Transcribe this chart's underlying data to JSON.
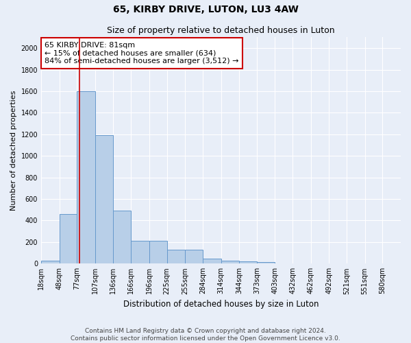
{
  "title1": "65, KIRBY DRIVE, LUTON, LU3 4AW",
  "title2": "Size of property relative to detached houses in Luton",
  "xlabel": "Distribution of detached houses by size in Luton",
  "ylabel": "Number of detached properties",
  "bin_edges": [
    18,
    48,
    77,
    107,
    136,
    166,
    196,
    225,
    255,
    284,
    314,
    344,
    373,
    403,
    432,
    462,
    492,
    521,
    551,
    580,
    610
  ],
  "bar_heights": [
    30,
    460,
    1600,
    1190,
    490,
    210,
    210,
    130,
    130,
    45,
    30,
    20,
    15,
    0,
    0,
    0,
    0,
    0,
    0,
    0
  ],
  "bar_color": "#b8cfe8",
  "bar_edge_color": "#6699cc",
  "bg_color": "#e8eef8",
  "grid_color": "#ffffff",
  "property_size": 81,
  "vline_color": "#cc0000",
  "annotation_text": "65 KIRBY DRIVE: 81sqm\n← 15% of detached houses are smaller (634)\n84% of semi-detached houses are larger (3,512) →",
  "annotation_box_color": "#ffffff",
  "annotation_box_edge": "#cc0000",
  "ylim": [
    0,
    2100
  ],
  "yticks": [
    0,
    200,
    400,
    600,
    800,
    1000,
    1200,
    1400,
    1600,
    1800,
    2000
  ],
  "footnote": "Contains HM Land Registry data © Crown copyright and database right 2024.\nContains public sector information licensed under the Open Government Licence v3.0.",
  "title1_fontsize": 10,
  "title2_fontsize": 9,
  "xlabel_fontsize": 8.5,
  "ylabel_fontsize": 8,
  "tick_fontsize": 7,
  "annotation_fontsize": 8,
  "footnote_fontsize": 6.5
}
